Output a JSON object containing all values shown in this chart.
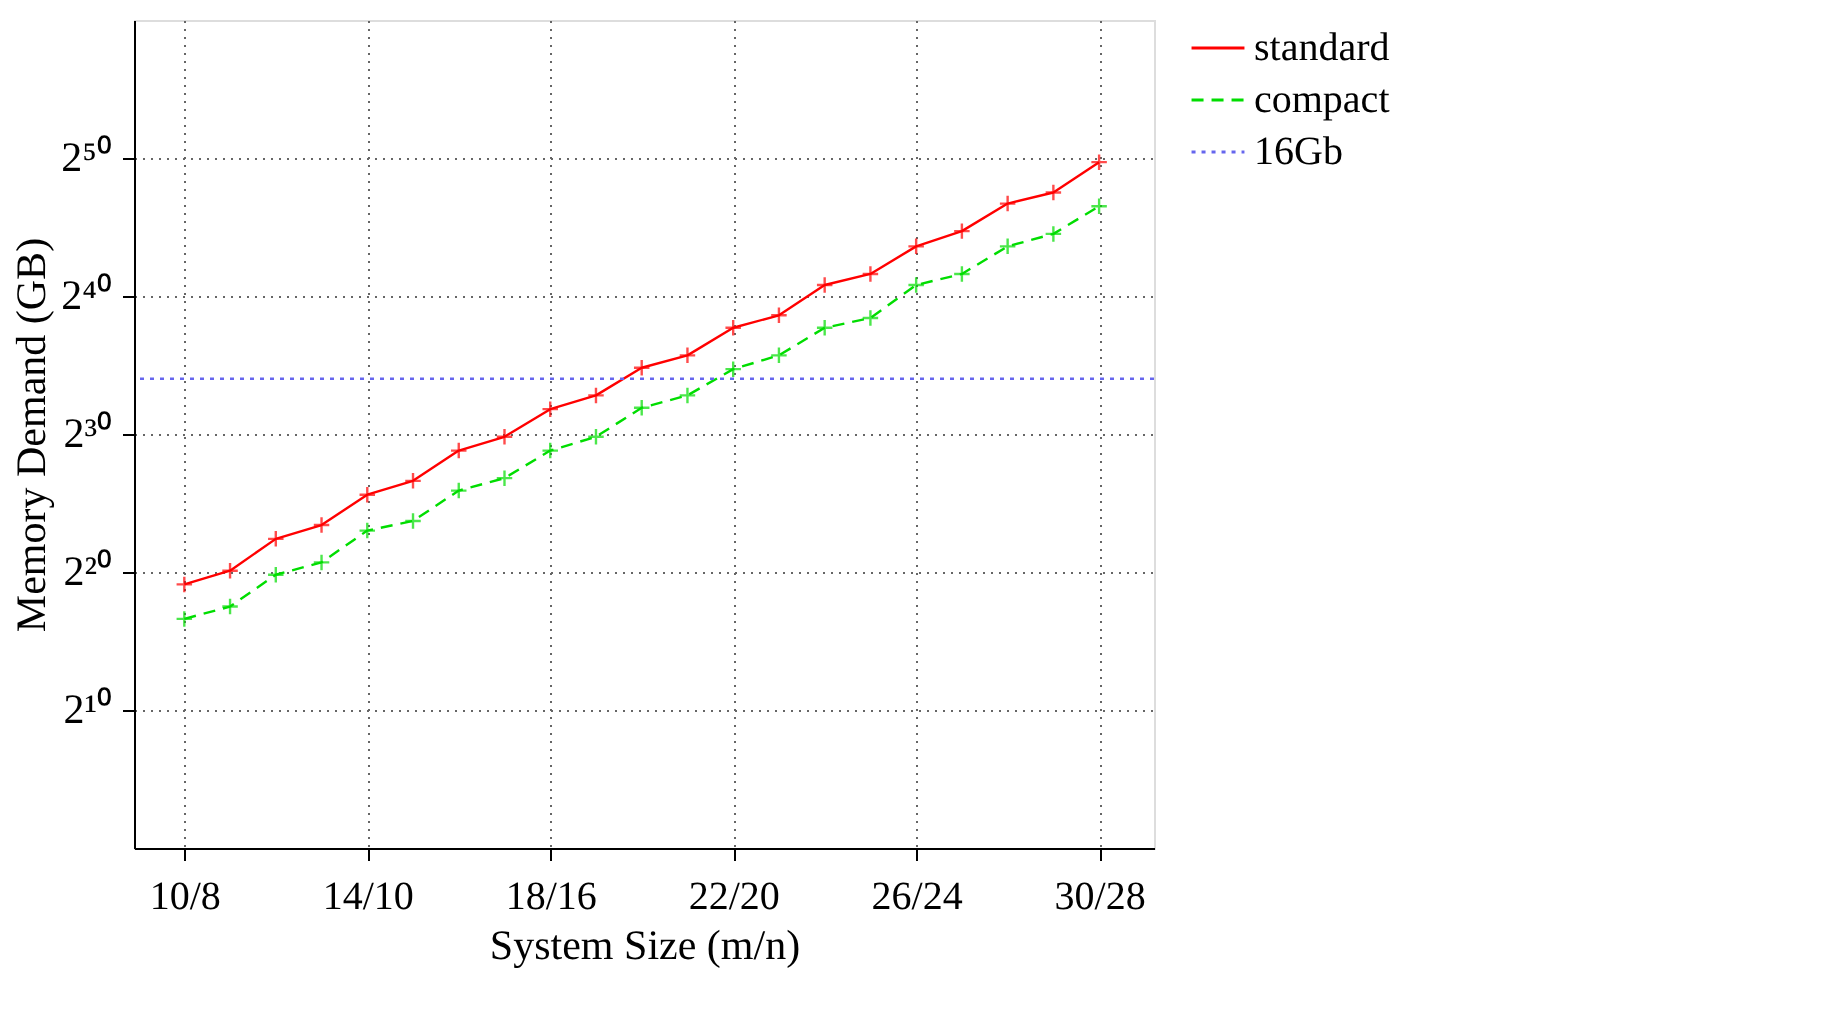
{
  "chart_data": {
    "type": "line",
    "xlabel": "System Size (m/n)",
    "ylabel": "Memory Demand (GB)",
    "categories": [
      "10/8",
      null,
      null,
      null,
      "14/10",
      null,
      null,
      null,
      "18/16",
      null,
      null,
      null,
      "22/20",
      null,
      null,
      null,
      "26/24",
      null,
      null,
      null,
      "30/28"
    ],
    "series": [
      {
        "name": "standard",
        "color": "#ff0000",
        "line_style": "solid",
        "marker": "cross",
        "values": [
          562000.0,
          1120000.0,
          5540000.0,
          11100000.0,
          50900000.0,
          102000000.0,
          467000000.0,
          934000000.0,
          3740000000.0,
          7470000000.0,
          29900000000.0,
          55800000000.0,
          223000000000.0,
          417000000000.0,
          1910000000000.0,
          3330000000000.0,
          13300000000000.0,
          28600000000000.0,
          114000000000000.0,
          199000000000000.0,
          915000000000000.0
        ]
      },
      {
        "name": "compact",
        "color": "#00dd00",
        "line_style": "dashed",
        "marker": "cross",
        "values": [
          99400.0,
          185000.0,
          913000.0,
          1700000.0,
          8390000.0,
          13600000.0,
          62600000.0,
          117000000.0,
          467000000.0,
          934000000.0,
          4010000000.0,
          7470000000.0,
          27900000000.0,
          55800000000.0,
          223000000000.0,
          363000000000.0,
          1910000000000.0,
          3330000000000.0,
          13300000000000.0,
          24900000000000.0,
          99500000000000.0
        ]
      }
    ],
    "ref_lines": [
      {
        "axis": "y",
        "value": 17200000000.0,
        "label": "16Gb",
        "color": "#6666ee",
        "line_style": "dotted"
      }
    ],
    "log": "y",
    "ylim": [
      1,
      1.153e+18
    ],
    "yticks": [
      {
        "value": 1024,
        "label": "2¹⁰"
      },
      {
        "value": 1048576,
        "label": "2²⁰"
      },
      {
        "value": 1073741824,
        "label": "2³⁰"
      },
      {
        "value": 1099511627776,
        "label": "2⁴⁰"
      },
      {
        "value": 1125899906842624,
        "label": "2⁵⁰"
      }
    ],
    "grid": true,
    "legend": "right"
  }
}
